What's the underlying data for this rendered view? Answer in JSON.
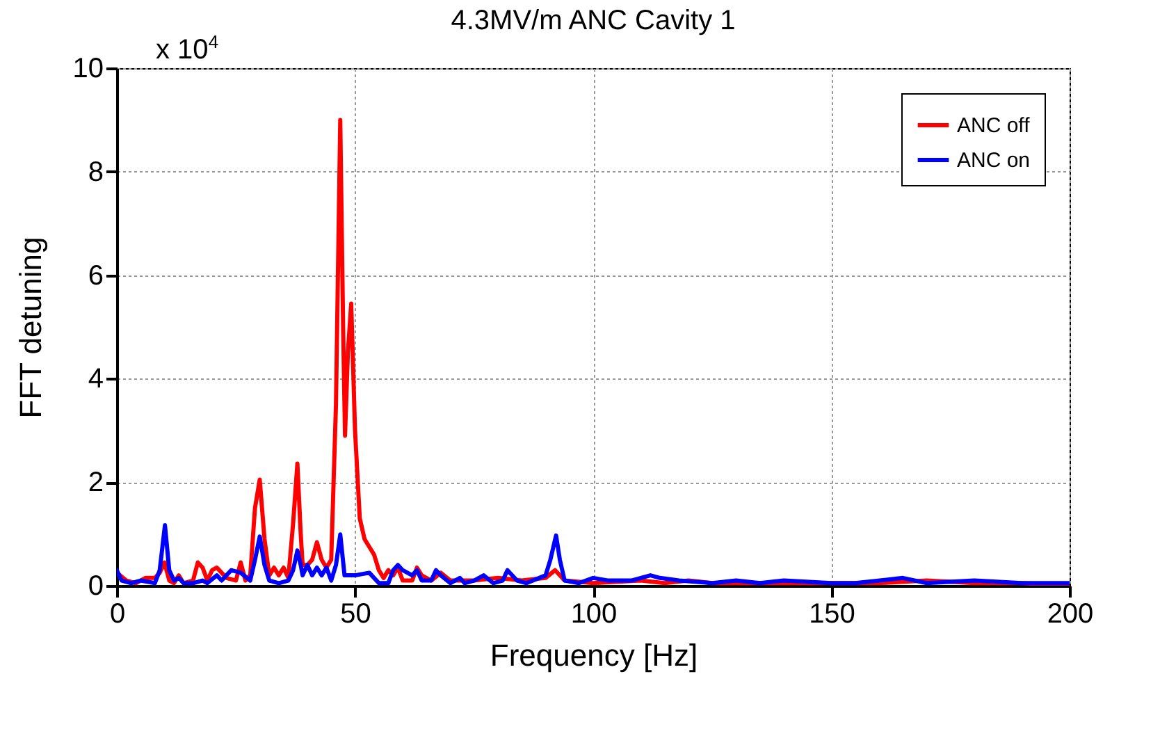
{
  "chart_data": {
    "type": "line",
    "title": "4.3MV/m ANC Cavity 1",
    "xlabel": "Frequency [Hz]",
    "ylabel": "FFT detuning",
    "annotations": [
      "x 10$^{4}$"
    ],
    "xlim": [
      0,
      200
    ],
    "xticks": [
      0,
      50,
      100,
      150,
      200
    ],
    "ylim": [
      0,
      10
    ],
    "yticks": [
      0,
      2,
      4,
      6,
      8,
      10
    ],
    "grid": true,
    "legend": "top right",
    "line_style": "solid",
    "marker": "none",
    "series": [
      {
        "name": "ANC off",
        "color": "#ff0000",
        "x": [
          0,
          2,
          4,
          6,
          8,
          9,
          10,
          11,
          12,
          13,
          14,
          16,
          17,
          18,
          19,
          20,
          21,
          22,
          23,
          25,
          26,
          27,
          28,
          29,
          30,
          31,
          32,
          33,
          34,
          35,
          36,
          37,
          37.9,
          38.6,
          39,
          40,
          41,
          42,
          43,
          44,
          45,
          46,
          46.9,
          47.5,
          47.9,
          48.5,
          49.2,
          50,
          51,
          52,
          53,
          54,
          55,
          56,
          57,
          58,
          59,
          60,
          62,
          63,
          64,
          66,
          68,
          70,
          75,
          80,
          85,
          90,
          92,
          94,
          100,
          110,
          115,
          120,
          125,
          130,
          140,
          160,
          170,
          180,
          190,
          200
        ],
        "values": [
          0.25,
          0.1,
          0.05,
          0.15,
          0.15,
          0.25,
          0.45,
          0.1,
          0.05,
          0.2,
          0.05,
          0.1,
          0.45,
          0.35,
          0.1,
          0.3,
          0.35,
          0.25,
          0.15,
          0.1,
          0.45,
          0.1,
          0.2,
          1.5,
          2.05,
          0.9,
          0.2,
          0.35,
          0.2,
          0.35,
          0.15,
          1.2,
          2.36,
          1.0,
          0.4,
          0.4,
          0.5,
          0.84,
          0.5,
          0.35,
          0.5,
          3.5,
          9.0,
          5.0,
          2.9,
          4.5,
          5.45,
          3.0,
          1.3,
          0.9,
          0.75,
          0.6,
          0.3,
          0.15,
          0.3,
          0.2,
          0.35,
          0.1,
          0.1,
          0.35,
          0.2,
          0.1,
          0.25,
          0.1,
          0.1,
          0.15,
          0.1,
          0.15,
          0.3,
          0.1,
          0.05,
          0.1,
          0.05,
          0.1,
          0.05,
          0.05,
          0.05,
          0.05,
          0.1,
          0.05,
          0.05,
          0.0
        ]
      },
      {
        "name": "ANC on",
        "color": "#0000ff",
        "x": [
          0,
          1,
          3,
          5,
          8,
          9,
          10.1,
          11,
          12,
          13,
          14,
          16,
          18,
          19,
          21,
          22,
          23,
          24,
          26,
          28,
          29,
          30,
          31,
          32,
          34,
          36,
          37,
          37.9,
          38.6,
          39,
          40,
          41,
          42,
          43,
          44,
          45,
          46,
          46.9,
          47.8,
          50,
          53,
          55,
          57,
          58,
          59,
          60,
          62,
          63,
          64,
          66,
          67,
          68,
          70,
          72,
          73,
          75,
          77,
          79,
          81,
          82,
          84,
          86,
          90,
          91,
          92.2,
          93,
          94,
          97,
          100,
          103,
          108,
          112,
          114,
          118,
          125,
          130,
          135,
          140,
          150,
          155,
          165,
          170,
          180,
          190,
          200
        ],
        "values": [
          0.3,
          0.1,
          0.05,
          0.1,
          0.05,
          0.3,
          1.17,
          0.3,
          0.1,
          0.15,
          0.05,
          0.05,
          0.1,
          0.05,
          0.2,
          0.1,
          0.2,
          0.3,
          0.25,
          0.1,
          0.5,
          0.95,
          0.4,
          0.1,
          0.05,
          0.1,
          0.3,
          0.68,
          0.4,
          0.2,
          0.4,
          0.2,
          0.35,
          0.2,
          0.35,
          0.1,
          0.4,
          0.99,
          0.2,
          0.2,
          0.25,
          0.05,
          0.05,
          0.3,
          0.4,
          0.3,
          0.2,
          0.3,
          0.1,
          0.1,
          0.3,
          0.2,
          0.05,
          0.15,
          0.05,
          0.1,
          0.2,
          0.05,
          0.1,
          0.3,
          0.1,
          0.05,
          0.2,
          0.5,
          0.97,
          0.5,
          0.1,
          0.05,
          0.15,
          0.1,
          0.1,
          0.2,
          0.15,
          0.1,
          0.05,
          0.1,
          0.05,
          0.1,
          0.05,
          0.05,
          0.15,
          0.05,
          0.1,
          0.05,
          0.05
        ]
      }
    ]
  }
}
